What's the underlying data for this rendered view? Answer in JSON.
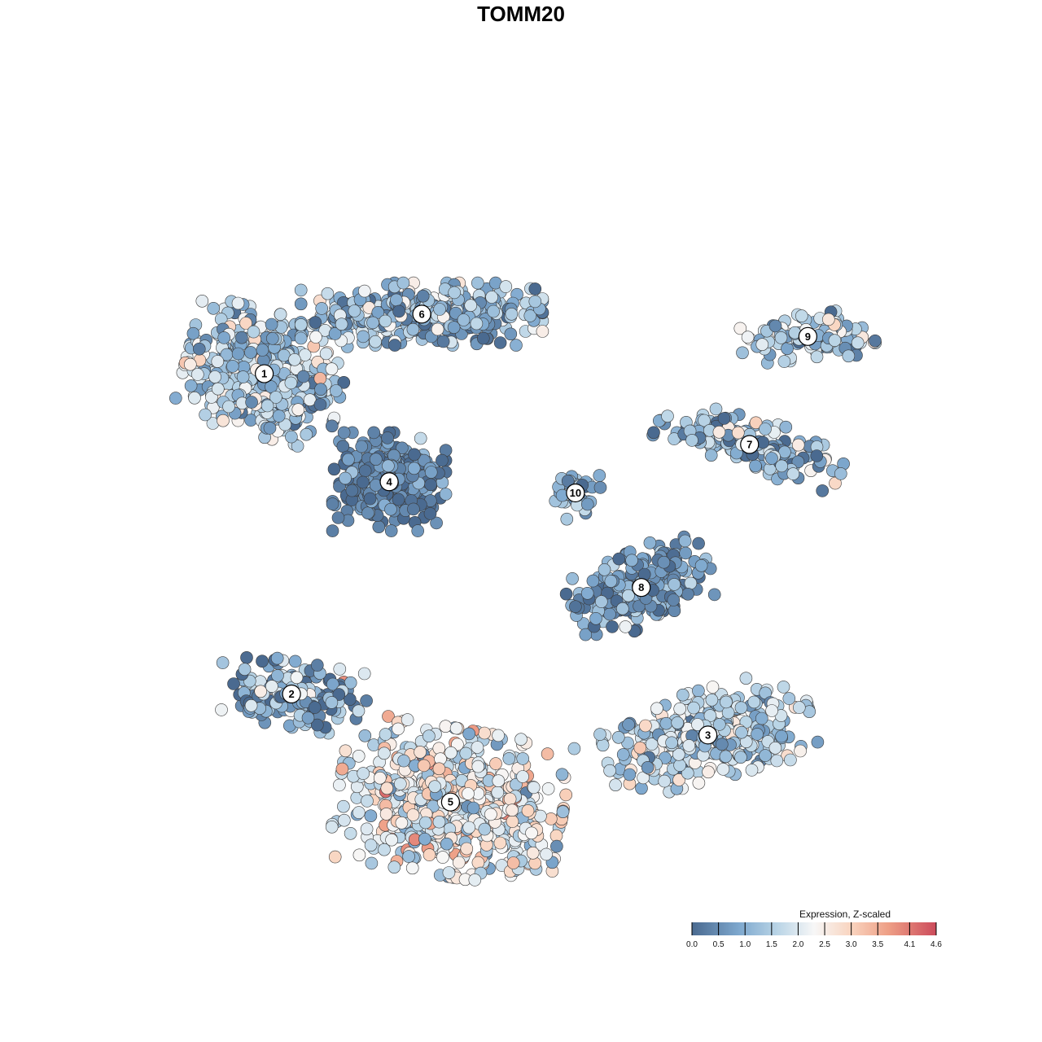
{
  "chart_data": {
    "type": "scatter",
    "title": "TOMM20",
    "xlabel": "",
    "ylabel": "",
    "grid": false,
    "axes_visible": false,
    "x_range": [
      0,
      100
    ],
    "y_range": [
      0,
      100
    ],
    "legend": {
      "title": "Expression, Z-scaled",
      "placement": "bottom-right",
      "ticks": [
        "0.0",
        "0.5",
        "1.0",
        "1.5",
        "2.0",
        "2.5",
        "3.0",
        "3.5",
        "4.1",
        "4.6"
      ],
      "tick_values": [
        0.0,
        0.5,
        1.0,
        1.5,
        2.0,
        2.5,
        3.0,
        3.5,
        4.1,
        4.6
      ],
      "range": [
        0.0,
        4.6
      ],
      "color_stops": [
        {
          "value": 0.0,
          "color": "#4a6a90"
        },
        {
          "value": 0.9,
          "color": "#7fa9cf"
        },
        {
          "value": 1.6,
          "color": "#b9d4e6"
        },
        {
          "value": 2.3,
          "color": "#f7f7f7"
        },
        {
          "value": 3.0,
          "color": "#f9d4bf"
        },
        {
          "value": 3.7,
          "color": "#ee9f86"
        },
        {
          "value": 4.6,
          "color": "#cc4b5b"
        }
      ]
    },
    "clusters": [
      {
        "id": "1",
        "x": 13.4,
        "y": 69.5,
        "sx": 9.5,
        "sy": 7.5,
        "rot": -15,
        "n": 520,
        "mean": 1.4,
        "sd": 0.7
      },
      {
        "id": "6",
        "x": 34.2,
        "y": 77.5,
        "sx": 14.5,
        "sy": 3.8,
        "rot": 0,
        "n": 420,
        "mean": 1.2,
        "sd": 0.7
      },
      {
        "id": "4",
        "x": 29.9,
        "y": 55.0,
        "sx": 6.8,
        "sy": 6.0,
        "rot": 0,
        "n": 330,
        "mean": 0.35,
        "sd": 0.45
      },
      {
        "id": "10",
        "x": 54.5,
        "y": 53.5,
        "sx": 3.0,
        "sy": 3.2,
        "rot": 0,
        "n": 40,
        "mean": 1.0,
        "sd": 0.6
      },
      {
        "id": "9",
        "x": 85.2,
        "y": 74.5,
        "sx": 8.0,
        "sy": 2.8,
        "rot": 5,
        "n": 110,
        "mean": 1.5,
        "sd": 0.7
      },
      {
        "id": "7",
        "x": 77.5,
        "y": 60.0,
        "sx": 11.5,
        "sy": 3.2,
        "rot": -15,
        "n": 180,
        "mean": 1.1,
        "sd": 0.7
      },
      {
        "id": "8",
        "x": 63.2,
        "y": 40.8,
        "sx": 8.5,
        "sy": 4.5,
        "rot": 25,
        "n": 260,
        "mean": 0.6,
        "sd": 0.6
      },
      {
        "id": "2",
        "x": 17.0,
        "y": 26.5,
        "sx": 9.0,
        "sy": 4.0,
        "rot": -10,
        "n": 170,
        "mean": 0.9,
        "sd": 0.8
      },
      {
        "id": "3",
        "x": 72.0,
        "y": 21.0,
        "sx": 12.5,
        "sy": 5.5,
        "rot": 15,
        "n": 330,
        "mean": 1.6,
        "sd": 0.6
      },
      {
        "id": "5",
        "x": 38.0,
        "y": 12.0,
        "sx": 13.5,
        "sy": 9.0,
        "rot": -10,
        "n": 620,
        "mean": 2.3,
        "sd": 0.75
      }
    ]
  }
}
